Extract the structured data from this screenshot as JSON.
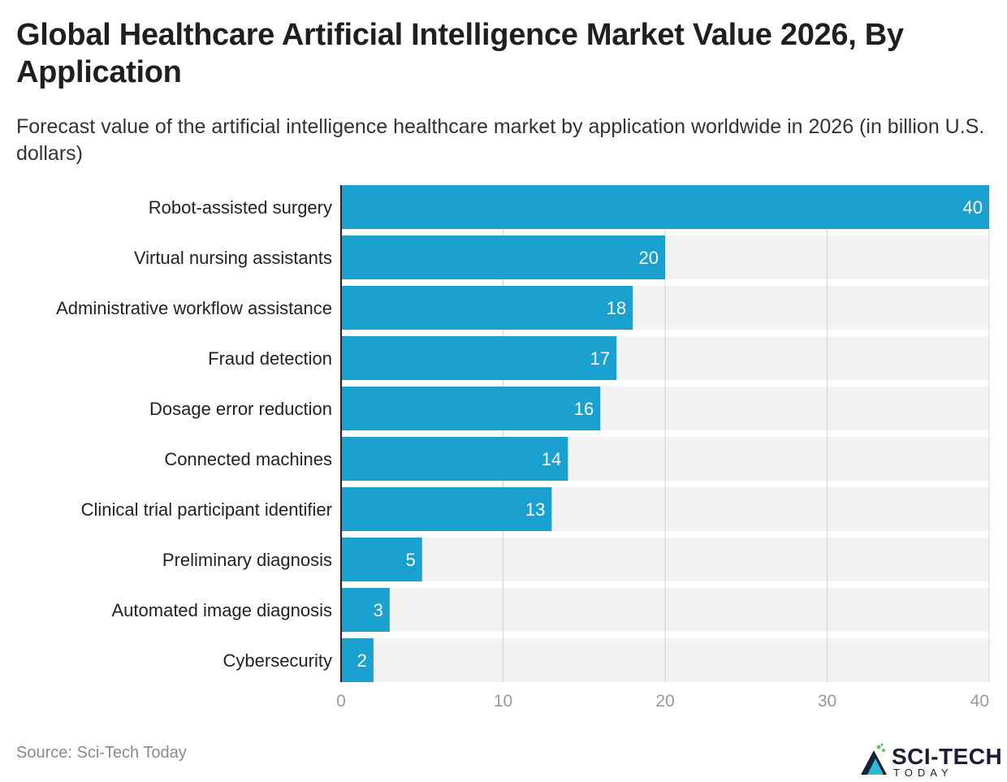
{
  "title": "Global Healthcare Artificial Intelligence Market Value 2026, By Application",
  "subtitle": "Forecast value of the artificial intelligence healthcare market by application worldwide in 2026 (in billion U.S. dollars)",
  "source": "Source: Sci-Tech Today",
  "logo": {
    "name": "SCI-TECH",
    "tagline": "TODAY"
  },
  "colors": {
    "bar": "#1ba1cf",
    "track": "#f2f2f2",
    "grid": "#d4d4d4",
    "axis": "#222222",
    "tick": "#999999"
  },
  "chart_data": {
    "type": "bar",
    "orientation": "horizontal",
    "categories": [
      "Robot-assisted surgery",
      "Virtual nursing assistants",
      "Administrative workflow assistance",
      "Fraud detection",
      "Dosage error reduction",
      "Connected machines",
      "Clinical trial participant identifier",
      "Preliminary diagnosis",
      "Automated image diagnosis",
      "Cybersecurity"
    ],
    "values": [
      40,
      20,
      18,
      17,
      16,
      14,
      13,
      5,
      3,
      2
    ],
    "xlim": [
      0,
      40
    ],
    "xticks": [
      0,
      10,
      20,
      30,
      40
    ],
    "grid": true,
    "data_labels": true
  }
}
